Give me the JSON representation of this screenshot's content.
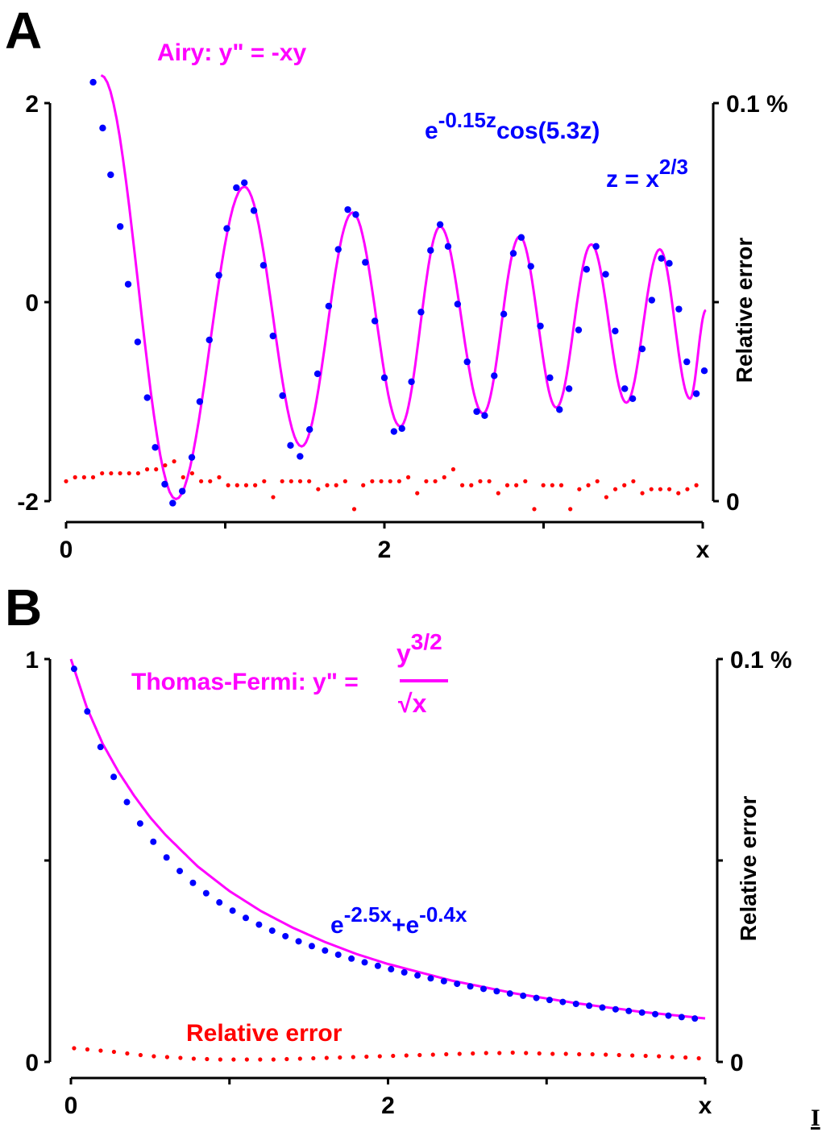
{
  "colors": {
    "solution_curve": "#ff00ff",
    "approximation_points": "#0000ff",
    "relative_error_points": "#ff0000",
    "axes": "#000000"
  },
  "stray_glyph": "I",
  "chart_data": [
    {
      "panel": "A",
      "type": "line",
      "title": "Airy: y\" = -xy",
      "xlabel": "x",
      "ylabel": "",
      "y2label": "Relative error",
      "xlim": [
        0,
        4
      ],
      "ylim": [
        -2,
        2
      ],
      "y2lim": [
        0,
        0.1
      ],
      "x_ticks": [
        {
          "value": 0,
          "label": "0"
        },
        {
          "value": 1,
          "label": ""
        },
        {
          "value": 2,
          "label": "2"
        },
        {
          "value": 3,
          "label": ""
        },
        {
          "value": 4,
          "label": "x"
        }
      ],
      "y_ticks": [
        {
          "value": -2,
          "label": "-2"
        },
        {
          "value": 0,
          "label": "0"
        },
        {
          "value": 2,
          "label": "2"
        }
      ],
      "y2_ticks": [
        {
          "value": 0,
          "label": "0"
        },
        {
          "value": 0.05,
          "label": ""
        },
        {
          "value": 0.1,
          "label": "0.1 %"
        }
      ],
      "grid": false,
      "annotations": {
        "approximation_main": {
          "base": "e",
          "exp": "-0.15z",
          "rest": "cos(5.3z)"
        },
        "approximation_sub": {
          "base": "z = x",
          "exp": "2/3"
        }
      },
      "series": [
        {
          "name": "Airy solution",
          "kind": "line",
          "color": "#ff00ff",
          "points": [
            [
              0.22,
              2.28
            ],
            [
              0.69,
              -1.98
            ],
            [
              1.12,
              1.16
            ],
            [
              1.48,
              -1.45
            ],
            [
              1.8,
              0.9
            ],
            [
              2.1,
              -1.25
            ],
            [
              2.35,
              0.76
            ],
            [
              2.62,
              -1.12
            ],
            [
              2.85,
              0.66
            ],
            [
              3.08,
              -1.06
            ],
            [
              3.3,
              0.58
            ],
            [
              3.52,
              -1.01
            ],
            [
              3.73,
              0.53
            ],
            [
              3.92,
              -0.97
            ],
            [
              4.02,
              -0.08
            ]
          ]
        },
        {
          "name": "Approximation e^-0.15z cos(5.3z), z = x^2/3",
          "kind": "scatter",
          "color": "#0000ff",
          "points": [
            [
              0.17,
              2.21
            ],
            [
              0.23,
              1.75
            ],
            [
              0.28,
              1.28
            ],
            [
              0.34,
              0.76
            ],
            [
              0.39,
              0.18
            ],
            [
              0.45,
              -0.4
            ],
            [
              0.51,
              -0.96
            ],
            [
              0.56,
              -1.46
            ],
            [
              0.62,
              -1.83
            ],
            [
              0.67,
              -2.02
            ],
            [
              0.73,
              -1.9
            ],
            [
              0.79,
              -1.56
            ],
            [
              0.84,
              -1.0
            ],
            [
              0.9,
              -0.38
            ],
            [
              0.96,
              0.27
            ],
            [
              1.01,
              0.74
            ],
            [
              1.07,
              1.15
            ],
            [
              1.12,
              1.2
            ],
            [
              1.18,
              0.92
            ],
            [
              1.24,
              0.37
            ],
            [
              1.3,
              -0.34
            ],
            [
              1.36,
              -0.94
            ],
            [
              1.41,
              -1.44
            ],
            [
              1.47,
              -1.55
            ],
            [
              1.53,
              -1.28
            ],
            [
              1.58,
              -0.72
            ],
            [
              1.65,
              -0.04
            ],
            [
              1.71,
              0.53
            ],
            [
              1.77,
              0.93
            ],
            [
              1.82,
              0.88
            ],
            [
              1.88,
              0.4
            ],
            [
              1.94,
              -0.19
            ],
            [
              2.0,
              -0.76
            ],
            [
              2.06,
              -1.3
            ],
            [
              2.11,
              -1.27
            ],
            [
              2.17,
              -0.8
            ],
            [
              2.23,
              -0.1
            ],
            [
              2.29,
              0.52
            ],
            [
              2.35,
              0.78
            ],
            [
              2.4,
              0.56
            ],
            [
              2.46,
              -0.02
            ],
            [
              2.52,
              -0.6
            ],
            [
              2.58,
              -1.1
            ],
            [
              2.63,
              -1.14
            ],
            [
              2.69,
              -0.74
            ],
            [
              2.75,
              -0.12
            ],
            [
              2.81,
              0.49
            ],
            [
              2.86,
              0.65
            ],
            [
              2.92,
              0.36
            ],
            [
              2.98,
              -0.24
            ],
            [
              3.04,
              -0.76
            ],
            [
              3.1,
              -1.08
            ],
            [
              3.16,
              -0.87
            ],
            [
              3.22,
              -0.28
            ],
            [
              3.27,
              0.33
            ],
            [
              3.33,
              0.56
            ],
            [
              3.39,
              0.28
            ],
            [
              3.45,
              -0.29
            ],
            [
              3.51,
              -0.87
            ],
            [
              3.56,
              -0.97
            ],
            [
              3.62,
              -0.47
            ],
            [
              3.68,
              0.02
            ],
            [
              3.74,
              0.44
            ],
            [
              3.79,
              0.39
            ],
            [
              3.85,
              -0.07
            ],
            [
              3.9,
              -0.6
            ],
            [
              3.96,
              -0.92
            ],
            [
              4.01,
              -0.69
            ]
          ]
        },
        {
          "name": "Relative error",
          "kind": "scatter",
          "color": "#ff0000",
          "axis": "right",
          "values_percent": [
            0.005,
            0.006,
            0.006,
            0.006,
            0.007,
            0.007,
            0.007,
            0.007,
            0.007,
            0.008,
            0.008,
            0.009,
            0.01,
            0.006,
            0.007,
            0.005,
            0.005,
            0.006,
            0.004,
            0.004,
            0.004,
            0.004,
            0.005,
            0.001,
            0.005,
            0.005,
            0.005,
            0.005,
            0.003,
            0.004,
            0.004,
            0.005,
            -0.002,
            0.004,
            0.005,
            0.005,
            0.005,
            0.005,
            0.006,
            0.002,
            0.005,
            0.005,
            0.006,
            0.008,
            0.004,
            0.004,
            0.005,
            0.005,
            0.002,
            0.004,
            0.004,
            0.005,
            -0.002,
            0.004,
            0.004,
            0.004,
            -0.002,
            0.003,
            0.004,
            0.005,
            0.001,
            0.003,
            0.004,
            0.005,
            0.002,
            0.003,
            0.003,
            0.003,
            0.002,
            0.003,
            0.004
          ]
        }
      ]
    },
    {
      "panel": "B",
      "type": "line",
      "title": "Thomas-Fermi:  y\" = y^3/2 / √x",
      "xlabel": "x",
      "ylabel": "",
      "y2label": "Relative error",
      "xlim": [
        0,
        4
      ],
      "ylim": [
        0,
        1
      ],
      "y2lim": [
        0,
        0.1
      ],
      "x_ticks": [
        {
          "value": 0,
          "label": "0"
        },
        {
          "value": 1,
          "label": ""
        },
        {
          "value": 2,
          "label": "2"
        },
        {
          "value": 3,
          "label": ""
        },
        {
          "value": 4,
          "label": "x"
        }
      ],
      "y_ticks": [
        {
          "value": 0,
          "label": "0"
        },
        {
          "value": 0.5,
          "label": ""
        },
        {
          "value": 1,
          "label": "1"
        }
      ],
      "y2_ticks": [
        {
          "value": 0,
          "label": "0"
        },
        {
          "value": 0.05,
          "label": ""
        },
        {
          "value": 0.1,
          "label": "0.1 %"
        }
      ],
      "grid": false,
      "annotations": {
        "title_prefix": "Thomas-Fermi:  y\" =",
        "numerator_base": "y",
        "numerator_exp": "3/2",
        "denominator": "√x",
        "approximation": {
          "t1": "e",
          "e1": "-2.5x",
          "plus": "+e",
          "e2": "-0.4x"
        },
        "error_label": "Relative error"
      },
      "series": [
        {
          "name": "Thomas-Fermi solution",
          "kind": "line",
          "color": "#ff00ff",
          "points": [
            [
              0.0,
              1.0
            ],
            [
              0.1,
              0.88
            ],
            [
              0.2,
              0.79
            ],
            [
              0.3,
              0.72
            ],
            [
              0.4,
              0.66
            ],
            [
              0.5,
              0.607
            ],
            [
              0.6,
              0.562
            ],
            [
              0.8,
              0.485
            ],
            [
              1.0,
              0.424
            ],
            [
              1.2,
              0.374
            ],
            [
              1.4,
              0.333
            ],
            [
              1.6,
              0.298
            ],
            [
              1.8,
              0.268
            ],
            [
              2.0,
              0.243
            ],
            [
              2.4,
              0.202
            ],
            [
              2.8,
              0.17
            ],
            [
              3.2,
              0.145
            ],
            [
              3.6,
              0.124
            ],
            [
              4.0,
              0.108
            ]
          ]
        },
        {
          "name": "Approximation e^-2.5x + e^-0.4x",
          "kind": "scatter",
          "color": "#0000ff",
          "formula_scale": 0.5,
          "x_start": 0.02,
          "x_step": 0.0833,
          "count": 48
        },
        {
          "name": "Relative error",
          "kind": "scatter",
          "color": "#ff0000",
          "axis": "right",
          "values_percent": [
            0.0034,
            0.0031,
            0.0028,
            0.0025,
            0.0021,
            0.0017,
            0.0014,
            0.0012,
            0.001,
            0.0008,
            0.0007,
            0.0006,
            0.0006,
            0.0006,
            0.0006,
            0.0006,
            0.0007,
            0.0008,
            0.0009,
            0.001,
            0.0011,
            0.0012,
            0.0013,
            0.0014,
            0.0015,
            0.0016,
            0.0017,
            0.0018,
            0.0019,
            0.002,
            0.0021,
            0.0022,
            0.0022,
            0.0023,
            0.0022,
            0.0021,
            0.002,
            0.002,
            0.0019,
            0.0019,
            0.0018,
            0.0017,
            0.0016,
            0.0015,
            0.0014,
            0.0012,
            0.0011,
            0.0009
          ]
        }
      ]
    }
  ]
}
